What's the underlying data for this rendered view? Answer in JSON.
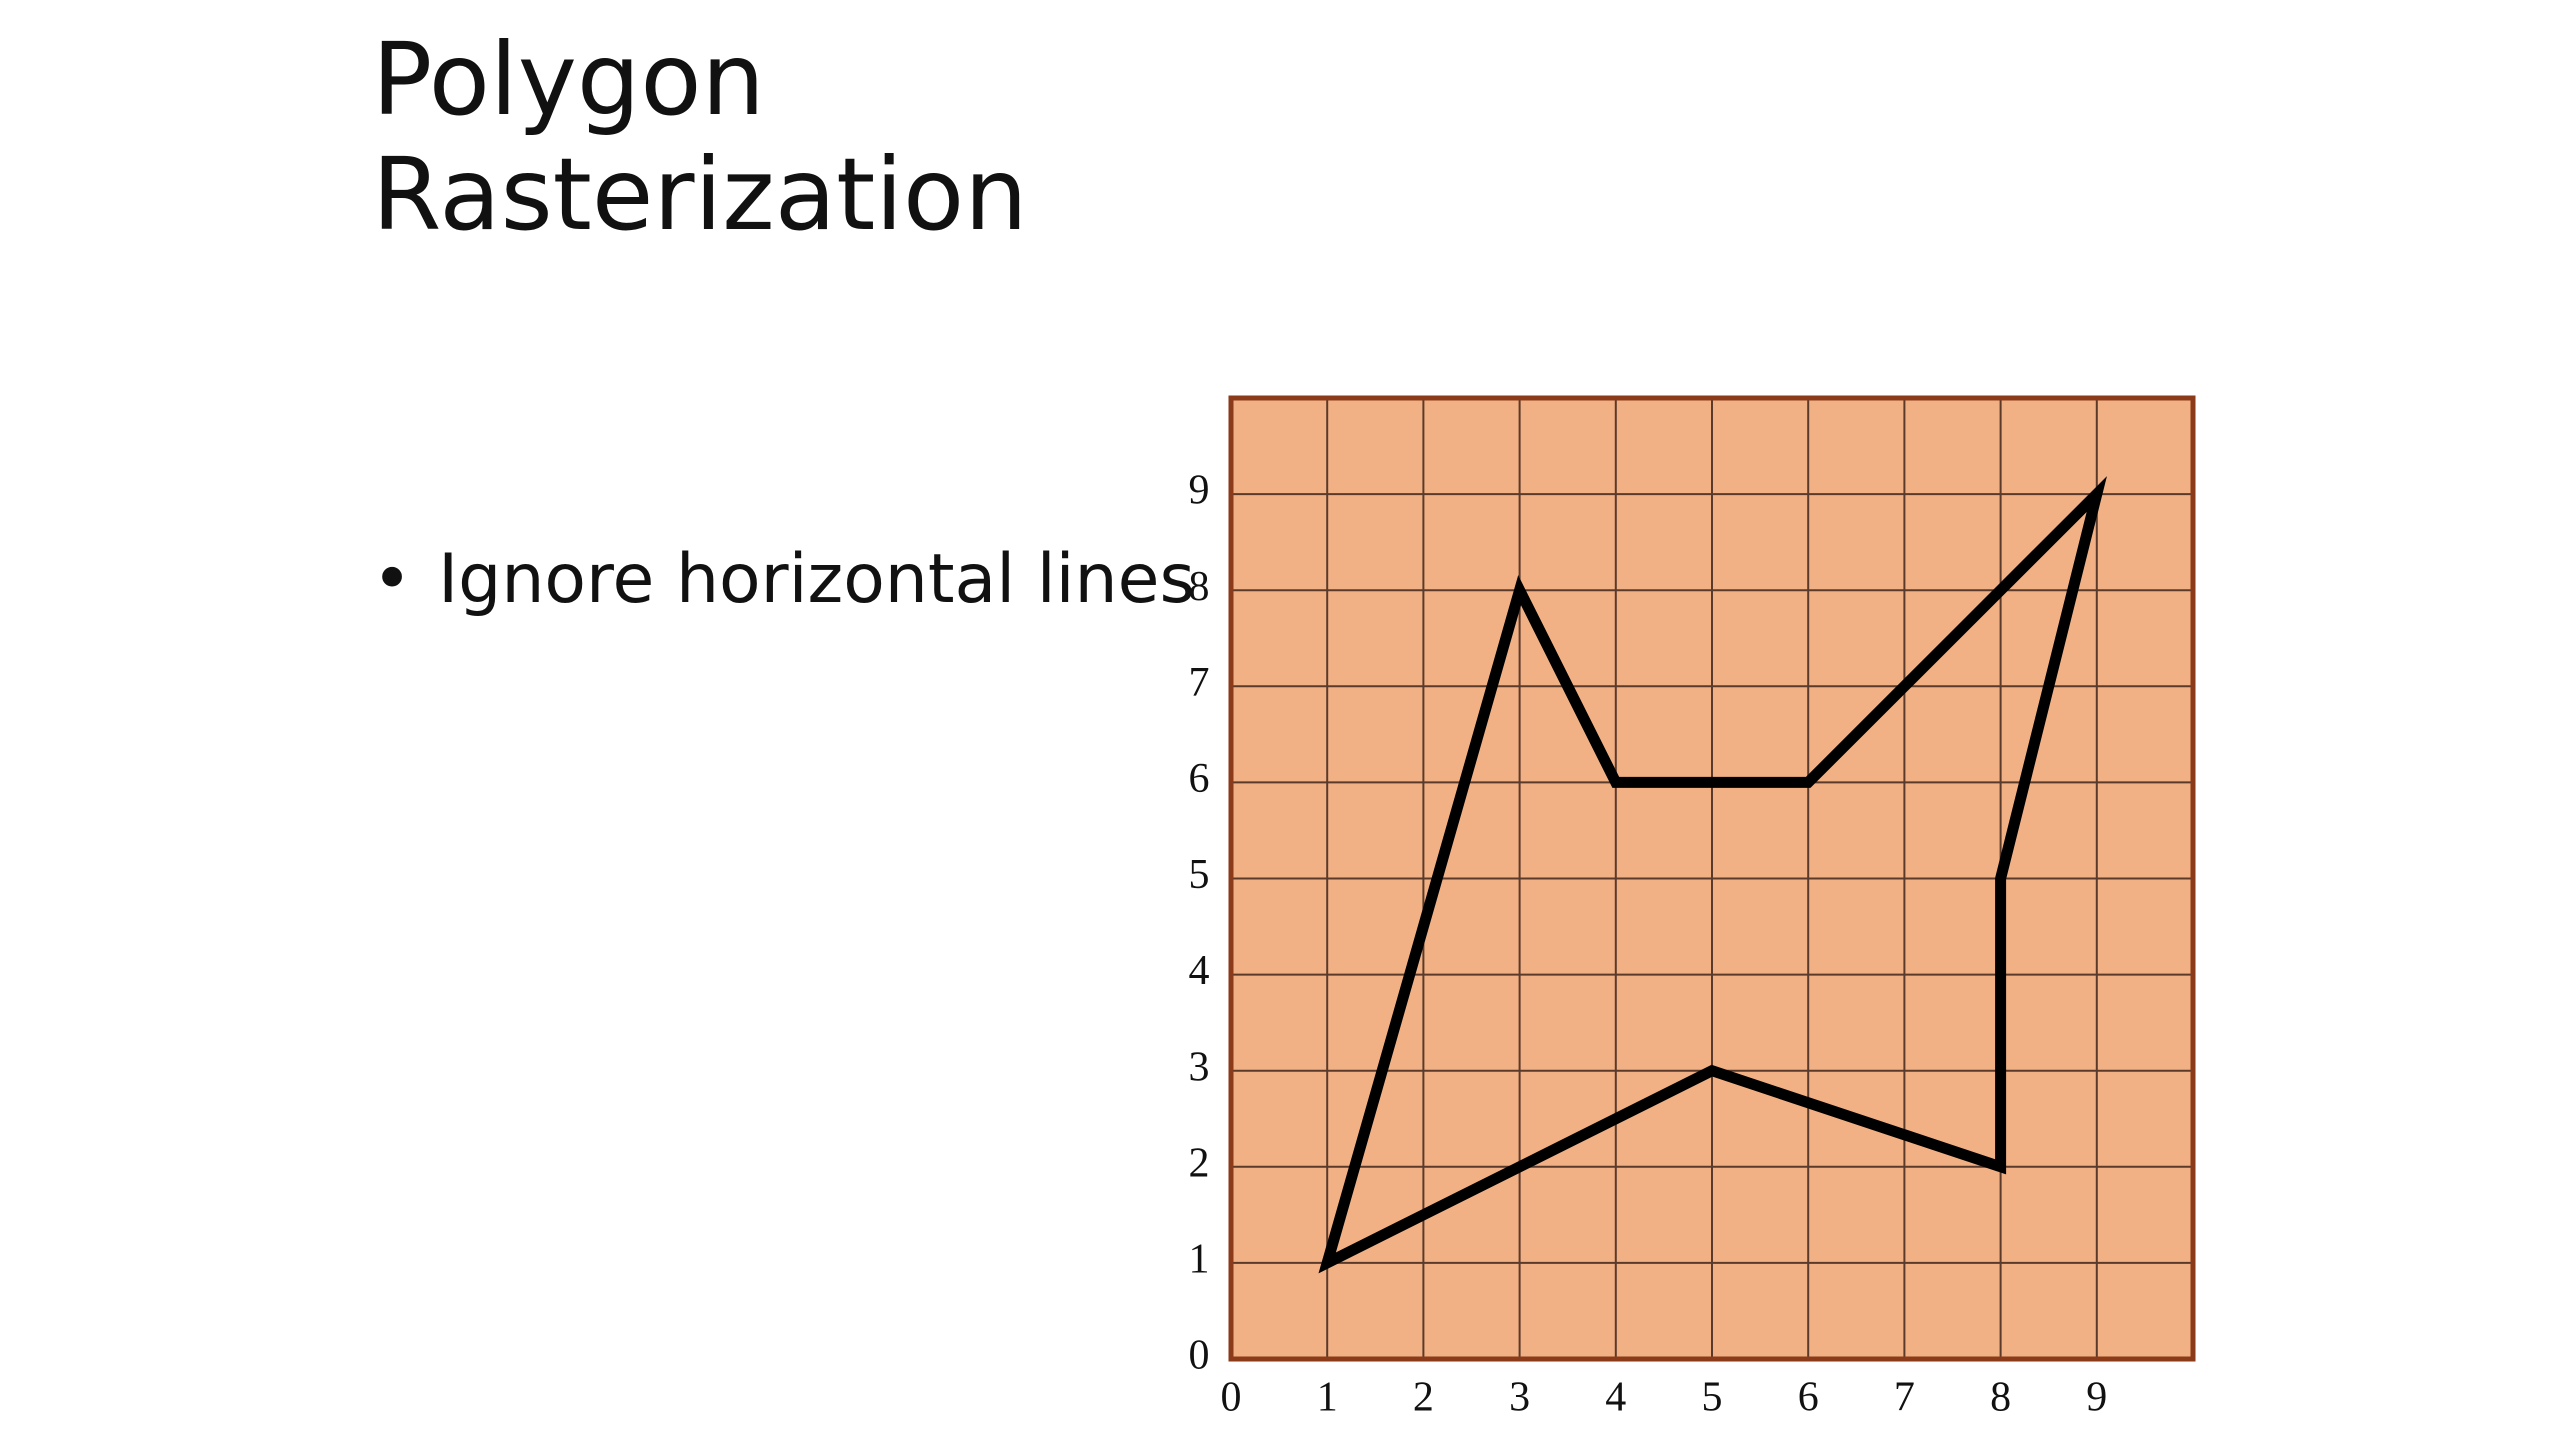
{
  "title": "Polygon Rasterization",
  "bullets": [
    "Ignore horizontal lines"
  ],
  "chart_data": {
    "type": "polygon",
    "x": [
      1,
      3,
      4,
      6,
      9,
      8,
      8,
      5
    ],
    "y": [
      1,
      8,
      6,
      6,
      9,
      5,
      2,
      3
    ],
    "color": "#000000",
    "fill": "#f2b184",
    "xlim": [
      0,
      10
    ],
    "ylim": [
      0,
      10
    ],
    "xticks": [
      0,
      1,
      2,
      3,
      4,
      5,
      6,
      7,
      8,
      9
    ],
    "yticks": [
      0,
      1,
      2,
      3,
      4,
      5,
      6,
      7,
      8,
      9
    ],
    "grid": true
  }
}
